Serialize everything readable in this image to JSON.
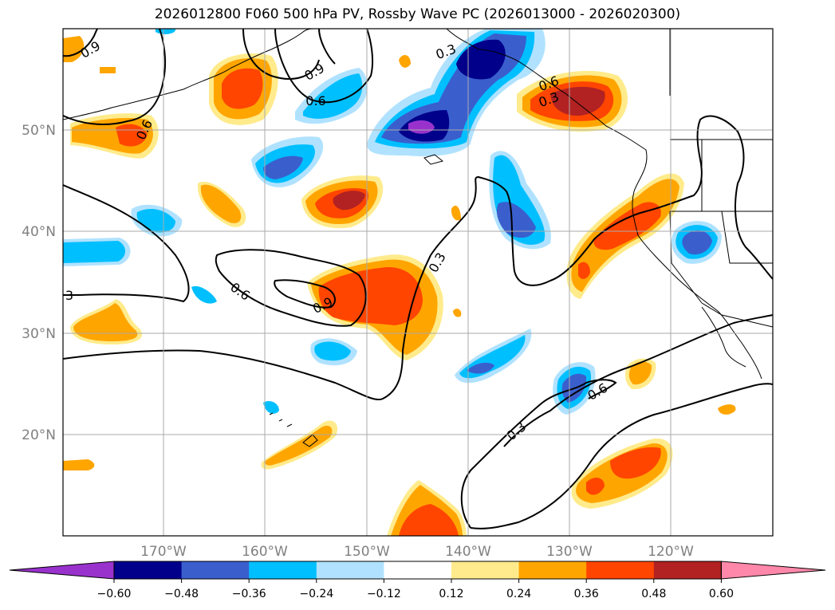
{
  "title": "2026012800 F060 500 hPa PV, Rossby Wave PC (2026013000 - 2026020300)",
  "lon_ticks": [
    "170°W",
    "160°W",
    "150°W",
    "140°W",
    "130°W",
    "120°W"
  ],
  "lat_ticks": [
    "50°N",
    "40°N",
    "30°N",
    "20°N"
  ],
  "colorbar": {
    "levels": [
      "−0.60",
      "−0.48",
      "−0.36",
      "−0.24",
      "−0.12",
      "0.12",
      "0.24",
      "0.36",
      "0.48",
      "0.60"
    ],
    "colors": [
      "#9932cc",
      "#00008b",
      "#3a5fcd",
      "#00bfff",
      "#b0e2ff",
      "#ffffff",
      "#ffeb8b",
      "#ffa500",
      "#ff4500",
      "#b22222",
      "#ff88aa"
    ]
  },
  "contour_labels": [
    "0.9",
    "0.6",
    "0.3",
    "0.9",
    "0.6",
    "0.3",
    "0.6",
    "0.9",
    "0.3",
    "0.6",
    "0.3",
    "0.6",
    "3"
  ]
}
